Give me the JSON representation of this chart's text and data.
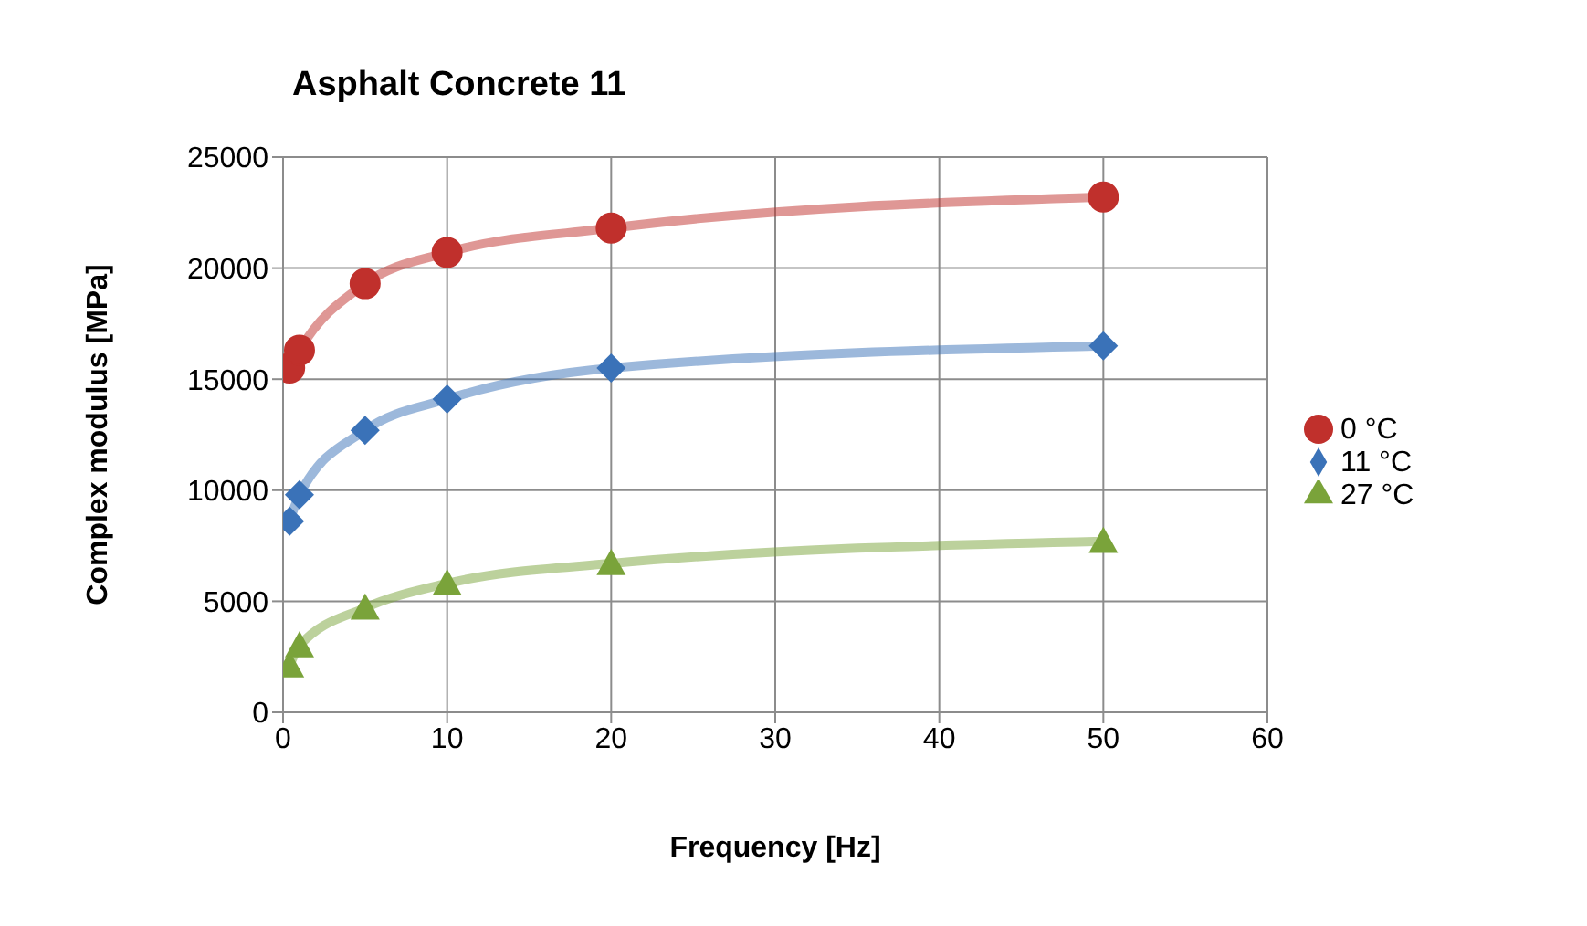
{
  "chart_data": {
    "type": "line",
    "title": "Asphalt Concrete 11",
    "xlabel": "Frequency [Hz]",
    "ylabel": "Complex modulus [MPa]",
    "xlim": [
      0,
      60
    ],
    "xticks": [
      0,
      10,
      20,
      30,
      40,
      50,
      60
    ],
    "ylim": [
      0,
      25000
    ],
    "yticks": [
      0,
      5000,
      10000,
      15000,
      20000,
      25000
    ],
    "grid": true,
    "legend": "right",
    "x": [
      0.4,
      1,
      5,
      10,
      20,
      50
    ],
    "series": [
      {
        "name": "0 °C",
        "color": "#c0302c",
        "marker": "circle",
        "values": [
          15500,
          16300,
          19300,
          20700,
          21800,
          23200
        ]
      },
      {
        "name": "11 °C",
        "color": "#3a72b8",
        "marker": "diamond",
        "values": [
          8600,
          9800,
          12700,
          14100,
          15500,
          16500
        ]
      },
      {
        "name": "27 °C",
        "color": "#7aa33a",
        "marker": "triangle",
        "values": [
          2100,
          3000,
          4700,
          5800,
          6700,
          7700
        ]
      }
    ]
  }
}
